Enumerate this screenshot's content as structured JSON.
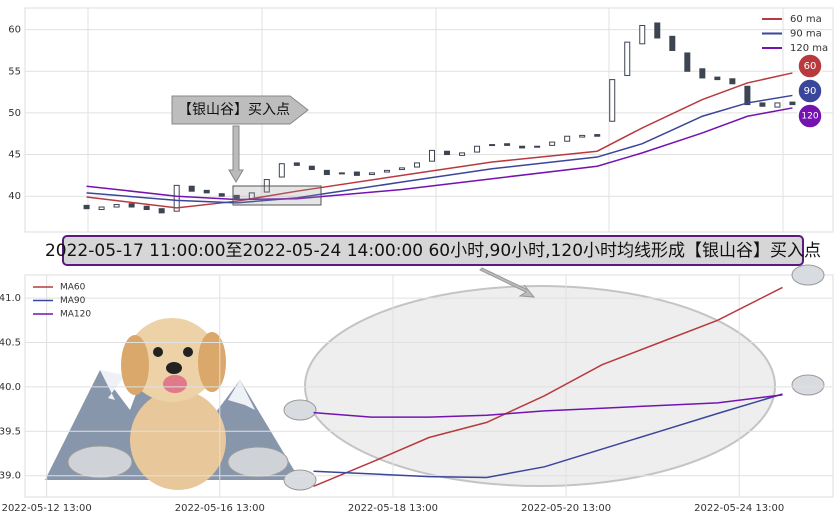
{
  "chart_data": [
    {
      "type": "candlestick",
      "x": [
        0,
        1,
        2,
        3,
        4,
        5,
        6,
        7,
        8,
        9,
        10,
        11,
        12,
        13,
        14,
        15,
        16,
        17,
        18,
        19,
        20,
        21,
        22,
        23,
        24,
        25,
        26,
        27,
        28,
        29,
        30,
        31,
        32,
        33,
        34,
        35,
        36,
        37,
        38,
        39,
        40,
        41,
        42,
        43,
        44,
        45,
        46,
        47
      ],
      "open": [
        38.9,
        38.4,
        38.7,
        39.1,
        38.8,
        38.5,
        38.2,
        41.2,
        40.7,
        40.3,
        40.1,
        39.7,
        40.5,
        42.3,
        44.0,
        43.6,
        43.1,
        42.7,
        42.9,
        42.6,
        42.9,
        43.2,
        43.5,
        44.2,
        45.4,
        44.9,
        45.3,
        46.1,
        46.3,
        46.0,
        45.9,
        46.1,
        46.6,
        47.1,
        47.4,
        49.0,
        54.5,
        58.3,
        60.8,
        59.2,
        57.2,
        55.3,
        54.3,
        54.1,
        53.2,
        51.2,
        50.7,
        51.3
      ],
      "close": [
        38.5,
        38.7,
        39.0,
        38.7,
        38.4,
        38.0,
        41.3,
        40.6,
        40.4,
        40.0,
        39.6,
        40.4,
        42.0,
        43.9,
        43.7,
        43.2,
        42.6,
        42.8,
        42.5,
        42.8,
        43.1,
        43.4,
        44.0,
        45.5,
        45.0,
        45.2,
        46.0,
        46.2,
        46.1,
        45.8,
        46.0,
        46.5,
        47.2,
        47.3,
        47.2,
        54.0,
        58.5,
        60.5,
        59.0,
        57.5,
        55.0,
        54.2,
        54.0,
        53.5,
        51.0,
        50.8,
        51.2,
        51.0
      ],
      "candle_color": "#3d4452",
      "series": [
        {
          "name": "60 ma",
          "color": "#b83a3f",
          "x": [
            0,
            6,
            10,
            14,
            21,
            27,
            34,
            37,
            41,
            44,
            47
          ],
          "values": [
            39.9,
            38.6,
            39.4,
            40.6,
            42.5,
            44.1,
            45.4,
            48.2,
            51.6,
            53.6,
            54.8
          ]
        },
        {
          "name": "90 ma",
          "color": "#3a4699",
          "x": [
            0,
            6,
            10,
            14,
            21,
            27,
            34,
            37,
            41,
            44,
            47
          ],
          "values": [
            40.4,
            39.5,
            39.2,
            39.8,
            41.7,
            43.3,
            44.7,
            46.3,
            49.6,
            51.2,
            52.1
          ]
        },
        {
          "name": "120 ma",
          "color": "#7413b0",
          "x": [
            0,
            6,
            10,
            14,
            21,
            27,
            34,
            37,
            41,
            44,
            47
          ],
          "values": [
            41.2,
            40.0,
            39.6,
            39.7,
            40.8,
            42.1,
            43.6,
            45.2,
            47.6,
            49.6,
            50.6
          ]
        }
      ],
      "xlim": [
        -4.1,
        49.7
      ],
      "ylim": [
        35.7,
        62.6
      ],
      "yticks": [
        40,
        45,
        50,
        55,
        60
      ],
      "grid": true,
      "badges": [
        "60",
        "90",
        "120"
      ],
      "annotation": "【银山谷】买入点",
      "banner": "2022-05-17 11:00:00至2022-05-24 14:00:00 60小时,90小时,120小时均线形成【银山谷】买入点"
    },
    {
      "type": "line",
      "series": [
        {
          "name": "MA60",
          "color": "#b83a3f",
          "x": [
            37,
            45,
            53,
            61,
            69,
            77,
            85,
            93,
            102
          ],
          "values": [
            38.88,
            39.15,
            39.43,
            39.6,
            39.9,
            40.25,
            40.5,
            40.75,
            41.12
          ]
        },
        {
          "name": "MA90",
          "color": "#3a4699",
          "x": [
            37,
            45,
            53,
            61,
            69,
            77,
            85,
            93,
            102
          ],
          "values": [
            39.05,
            39.02,
            38.99,
            38.98,
            39.1,
            39.3,
            39.5,
            39.7,
            39.92
          ]
        },
        {
          "name": "MA120",
          "color": "#7413b0",
          "x": [
            37,
            45,
            53,
            61,
            69,
            77,
            85,
            93,
            102
          ],
          "values": [
            39.71,
            39.66,
            39.66,
            39.68,
            39.73,
            39.76,
            39.79,
            39.82,
            39.91
          ]
        }
      ],
      "xlim": [
        -3,
        109
      ],
      "xticks": [
        {
          "value": 0,
          "label": "2022-05-12 13:00"
        },
        {
          "value": 24,
          "label": "2022-05-16 13:00"
        },
        {
          "value": 48,
          "label": "2022-05-18 13:00"
        },
        {
          "value": 72,
          "label": "2022-05-20 13:00"
        },
        {
          "value": 96,
          "label": "2022-05-24 13:00"
        }
      ],
      "ylim": [
        38.76,
        41.26
      ],
      "yticks": [
        {
          "value": 39,
          "label": "39.0"
        },
        39.5,
        {
          "value": 40,
          "label": "40.0"
        },
        40.5,
        {
          "value": 41,
          "label": "41.0"
        }
      ],
      "grid": true,
      "legend": "upper-left"
    }
  ]
}
